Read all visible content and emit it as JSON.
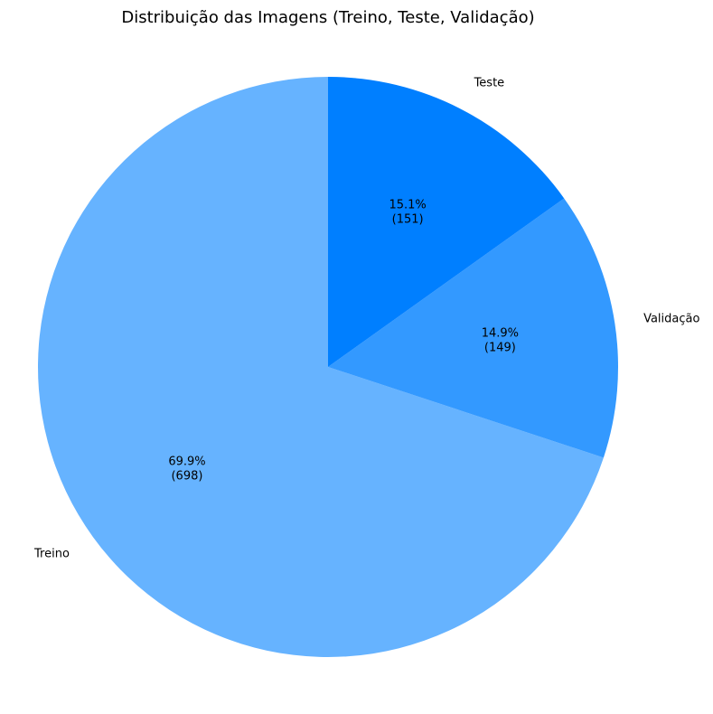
{
  "chart_data": {
    "type": "pie",
    "title": "Distribuição das Imagens (Treino, Teste, Validação)",
    "start_angle_deg": 90,
    "direction": "counterclockwise",
    "slices": [
      {
        "name": "Treino",
        "value": 698,
        "percent_label": "69.9%",
        "count_label": "(698)",
        "color": "#66b3ff"
      },
      {
        "name": "Validação",
        "value": 149,
        "percent_label": "14.9%",
        "count_label": "(149)",
        "color": "#3399ff"
      },
      {
        "name": "Teste",
        "value": 151,
        "percent_label": "15.1%",
        "count_label": "(151)",
        "color": "#007fff"
      }
    ]
  }
}
